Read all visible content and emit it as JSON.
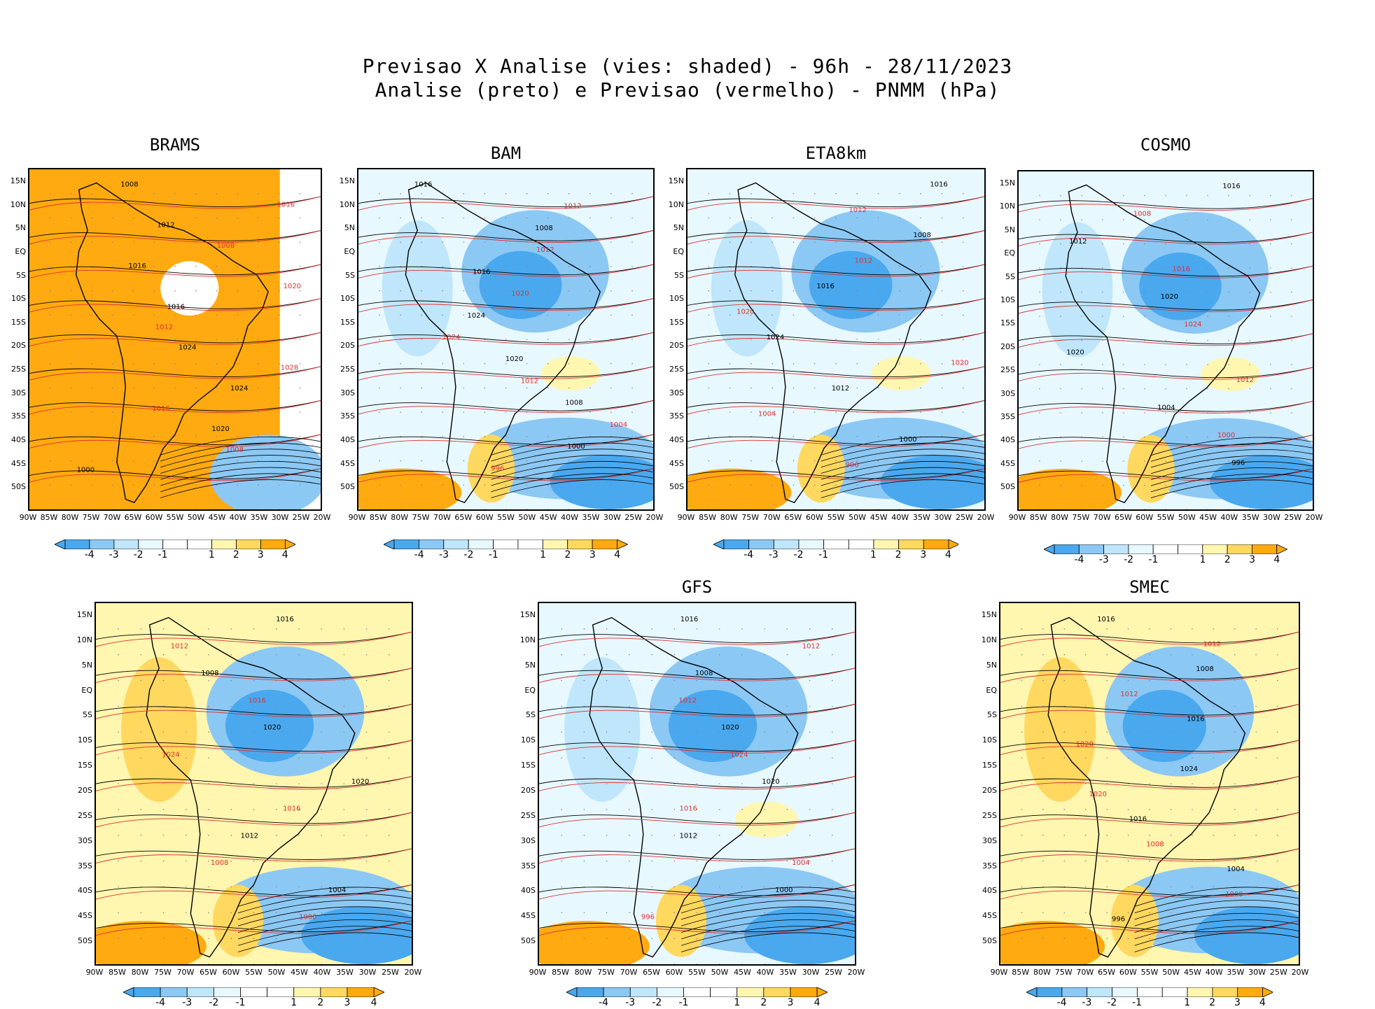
{
  "header": {
    "line1": "Previsao X Analise (vies: shaded) - 96h - 28/11/2023",
    "line2": "Analise (preto) e Previsao (vermelho) - PNMM (hPa)"
  },
  "axes": {
    "lat_labels": [
      "15N",
      "10N",
      "5N",
      "EQ",
      "5S",
      "10S",
      "15S",
      "20S",
      "25S",
      "30S",
      "35S",
      "40S",
      "45S",
      "50S"
    ],
    "lon_labels": [
      "90W",
      "85W",
      "80W",
      "75W",
      "70W",
      "65W",
      "60W",
      "55W",
      "50W",
      "45W",
      "40W",
      "35W",
      "30W",
      "25W",
      "20W"
    ]
  },
  "colorbar": {
    "labels": [
      "-4",
      "-3",
      "-2",
      "-1",
      "1",
      "2",
      "3",
      "4"
    ],
    "colors": [
      "#4aa8ee",
      "#8cc8f4",
      "#bfe6fa",
      "#e8f8ff",
      "#ffffff",
      "#fff6b0",
      "#ffd860",
      "#ffaa10"
    ]
  },
  "colors": {
    "analysis_contour": "#000000",
    "forecast_contour": "#e03030"
  },
  "panels": [
    {
      "title": "BRAMS",
      "bias": "positive",
      "contours": [
        "1008",
        "1016",
        "1012",
        "1008",
        "1016",
        "1020",
        "1016",
        "1012",
        "1024",
        "1028",
        "1024",
        "1016",
        "1020",
        "1008",
        "1000"
      ]
    },
    {
      "title": "BAM",
      "bias": "negative",
      "contours": [
        "1016",
        "1012",
        "1008",
        "1012",
        "1016",
        "1020",
        "1024",
        "1024",
        "1020",
        "1012",
        "1008",
        "1004",
        "1000",
        "996"
      ]
    },
    {
      "title": "ETA8km",
      "bias": "negative",
      "contours": [
        "1016",
        "1012",
        "1008",
        "1012",
        "1016",
        "1020",
        "1024",
        "1020",
        "1012",
        "1004",
        "1000",
        "996"
      ]
    },
    {
      "title": "COSMO",
      "bias": "negative",
      "contours": [
        "1016",
        "1008",
        "1012",
        "1016",
        "1020",
        "1024",
        "1020",
        "1012",
        "1004",
        "1000",
        "996"
      ]
    },
    {
      "title": "",
      "bias": "mixed",
      "contours": [
        "1016",
        "1012",
        "1008",
        "1016",
        "1020",
        "1024",
        "1020",
        "1016",
        "1012",
        "1008",
        "1004",
        "1000"
      ]
    },
    {
      "title": "GFS",
      "bias": "negative",
      "contours": [
        "1016",
        "1012",
        "1008",
        "1012",
        "1020",
        "1024",
        "1020",
        "1016",
        "1012",
        "1004",
        "1000",
        "996"
      ]
    },
    {
      "title": "SMEC",
      "bias": "mixed",
      "contours": [
        "1016",
        "1012",
        "1008",
        "1012",
        "1016",
        "1020",
        "1024",
        "1020",
        "1016",
        "1008",
        "1004",
        "1000",
        "996"
      ]
    }
  ]
}
